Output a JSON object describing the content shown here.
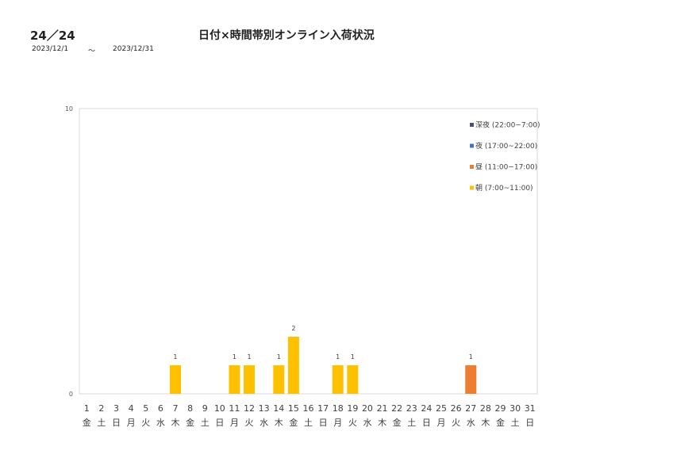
{
  "header": {
    "page_number": "24／24",
    "title": "日付×時間帯別オンライン入荷状況",
    "date_from": "2023/12/1",
    "range_separator": "～",
    "date_to": "2023/12/31"
  },
  "chart_data": {
    "type": "bar",
    "stacked": true,
    "title": "",
    "xlabel": "",
    "ylabel": "",
    "ylim": [
      0,
      10
    ],
    "yticks": [
      "0",
      "10"
    ],
    "grid": false,
    "legend_position": "top-right",
    "categories": [
      "1",
      "2",
      "3",
      "4",
      "5",
      "6",
      "7",
      "8",
      "9",
      "10",
      "11",
      "12",
      "13",
      "14",
      "15",
      "16",
      "17",
      "18",
      "19",
      "20",
      "21",
      "22",
      "23",
      "24",
      "25",
      "26",
      "27",
      "28",
      "29",
      "30",
      "31"
    ],
    "weekdays": [
      "金",
      "土",
      "日",
      "月",
      "火",
      "水",
      "木",
      "金",
      "土",
      "日",
      "月",
      "火",
      "水",
      "木",
      "金",
      "土",
      "日",
      "月",
      "火",
      "水",
      "木",
      "金",
      "土",
      "日",
      "月",
      "火",
      "水",
      "木",
      "金",
      "土",
      "日"
    ],
    "series": [
      {
        "name": "深夜 (22:00~7:00)",
        "color": "#44546a",
        "values": [
          0,
          0,
          0,
          0,
          0,
          0,
          0,
          0,
          0,
          0,
          0,
          0,
          0,
          0,
          0,
          0,
          0,
          0,
          0,
          0,
          0,
          0,
          0,
          0,
          0,
          0,
          0,
          0,
          0,
          0,
          0
        ]
      },
      {
        "name": "夜 (17:00~22:00)",
        "color": "#4472c4",
        "values": [
          0,
          0,
          0,
          0,
          0,
          0,
          0,
          0,
          0,
          0,
          0,
          0,
          0,
          0,
          0,
          0,
          0,
          0,
          0,
          0,
          0,
          0,
          0,
          0,
          0,
          0,
          0,
          0,
          0,
          0,
          0
        ]
      },
      {
        "name": "昼 (11:00~17:00)",
        "color": "#ed7d31",
        "values": [
          0,
          0,
          0,
          0,
          0,
          0,
          0,
          0,
          0,
          0,
          0,
          0,
          0,
          0,
          0,
          0,
          0,
          0,
          0,
          0,
          0,
          0,
          0,
          0,
          0,
          0,
          1,
          0,
          0,
          0,
          0
        ]
      },
      {
        "name": "朝 (7:00~11:00)",
        "color": "#ffc000",
        "values": [
          0,
          0,
          0,
          0,
          0,
          0,
          1,
          0,
          0,
          0,
          1,
          1,
          0,
          1,
          2,
          0,
          0,
          1,
          1,
          0,
          0,
          0,
          0,
          0,
          0,
          0,
          0,
          0,
          0,
          0,
          0
        ]
      }
    ],
    "data_labels": [
      "",
      "",
      "",
      "",
      "",
      "",
      "1",
      "",
      "",
      "",
      "1",
      "1",
      "",
      "1",
      "2",
      "",
      "",
      "1",
      "1",
      "",
      "",
      "",
      "",
      "",
      "",
      "",
      "1",
      "",
      "",
      "",
      ""
    ]
  }
}
